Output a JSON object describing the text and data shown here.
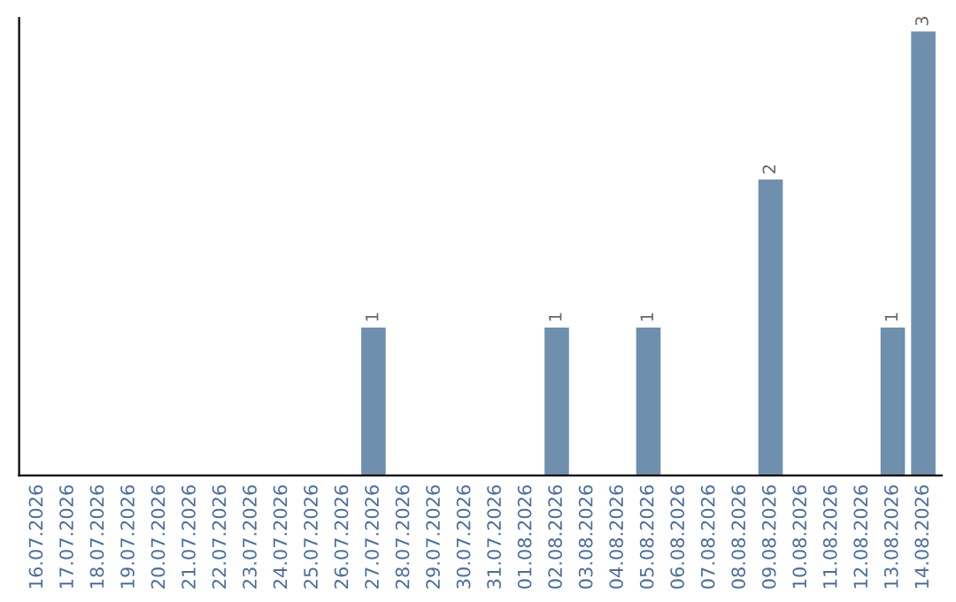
{
  "chart_data": {
    "type": "bar",
    "categories": [
      "16.07.2026",
      "17.07.2026",
      "18.07.2026",
      "19.07.2026",
      "20.07.2026",
      "21.07.2026",
      "22.07.2026",
      "23.07.2026",
      "24.07.2026",
      "25.07.2026",
      "26.07.2026",
      "27.07.2026",
      "28.07.2026",
      "29.07.2026",
      "30.07.2026",
      "31.07.2026",
      "01.08.2026",
      "02.08.2026",
      "03.08.2026",
      "04.08.2026",
      "05.08.2026",
      "06.08.2026",
      "07.08.2026",
      "08.08.2026",
      "09.08.2026",
      "10.08.2026",
      "11.08.2026",
      "12.08.2026",
      "13.08.2026",
      "14.08.2026"
    ],
    "values": [
      0,
      0,
      0,
      0,
      0,
      0,
      0,
      0,
      0,
      0,
      0,
      1,
      0,
      0,
      0,
      0,
      0,
      1,
      0,
      0,
      1,
      0,
      0,
      0,
      2,
      0,
      0,
      0,
      1,
      3
    ],
    "value_labels": [
      null,
      null,
      null,
      null,
      null,
      null,
      null,
      null,
      null,
      null,
      null,
      "1",
      null,
      null,
      null,
      null,
      null,
      "1",
      null,
      null,
      "1",
      null,
      null,
      null,
      "2",
      null,
      null,
      null,
      "1",
      "3"
    ],
    "color": "#6e8fad",
    "tick_labels": "x",
    "grid": false,
    "legend": false
  }
}
